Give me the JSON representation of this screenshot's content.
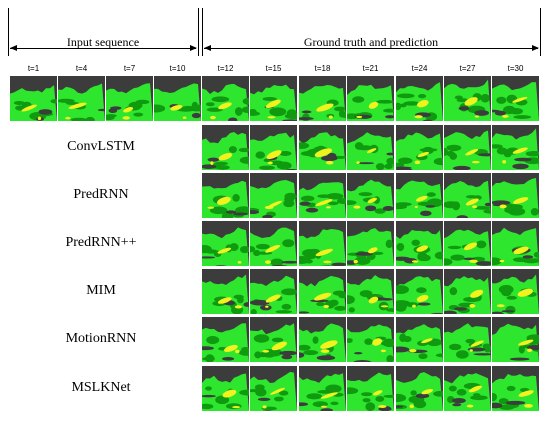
{
  "headers": {
    "input": "Input sequence",
    "ground": "Ground truth and prediction"
  },
  "time_labels": [
    "t=1",
    "t=4",
    "t=7",
    "t=10",
    "t=12",
    "t=15",
    "t=18",
    "t=21",
    "t=24",
    "t=27",
    "t=30"
  ],
  "models": [
    "ConvLSTM",
    "PredRNN",
    "PredRNN++",
    "MIM",
    "MotionRNN",
    "MSLKNet"
  ],
  "colors": {
    "background": "#3c3c3c",
    "green": "#2ee62e",
    "dark_green": "#0f9a0f",
    "yellow": "#f2f21e"
  }
}
